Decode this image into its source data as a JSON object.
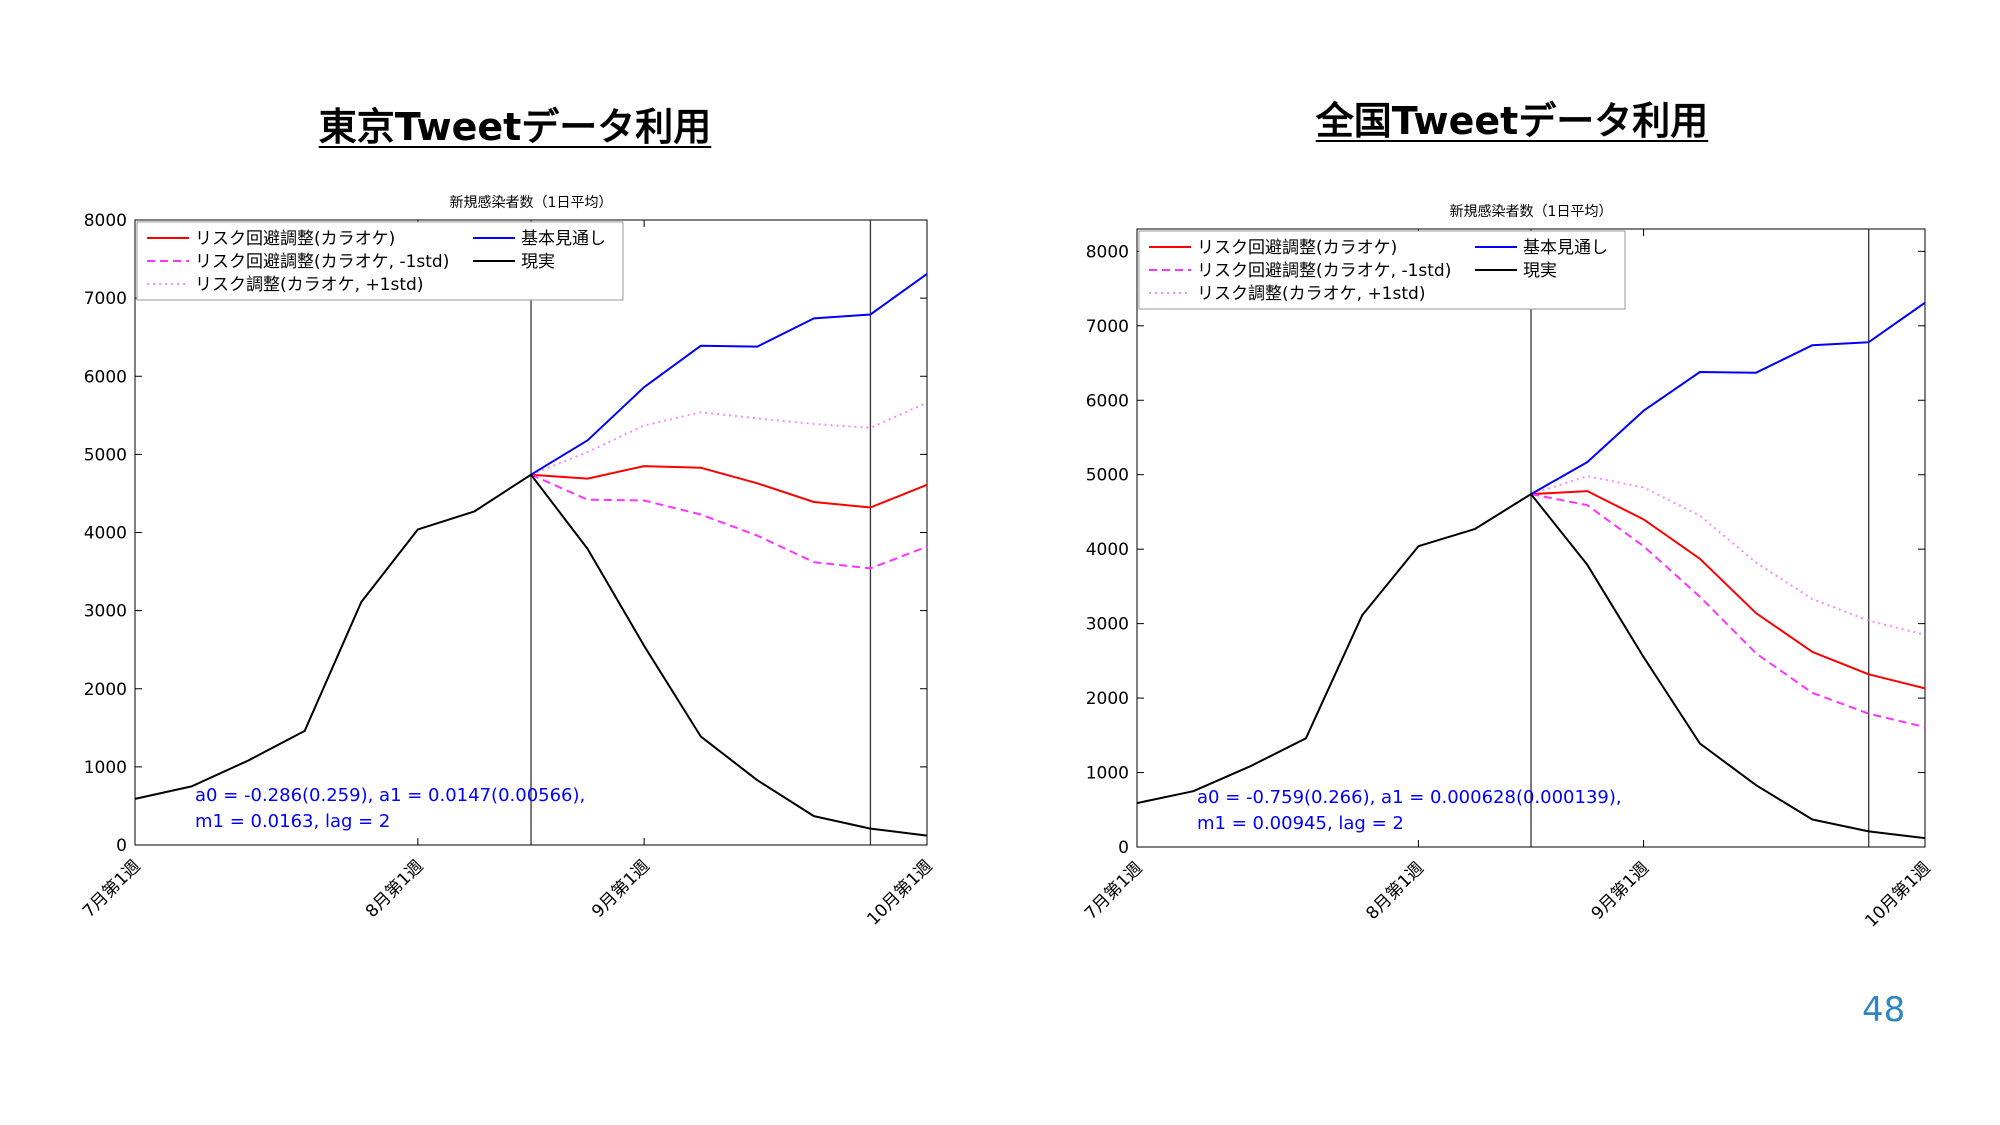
{
  "slide": {
    "page_number": "48"
  },
  "chart_data": [
    {
      "type": "line",
      "heading": "東京Tweetデータ利用",
      "title": "新規感染者数（1日平均）",
      "xlabel": "",
      "ylabel": "",
      "ylim": [
        0,
        8000
      ],
      "yticks": [
        0,
        1000,
        2000,
        3000,
        4000,
        5000,
        6000,
        7000,
        8000
      ],
      "xlim": [
        0,
        14
      ],
      "xticks": [
        {
          "x": 0,
          "label": "7月第1週"
        },
        {
          "x": 5,
          "label": "8月第1週"
        },
        {
          "x": 9,
          "label": "9月第1週"
        },
        {
          "x": 14,
          "label": "10月第1週"
        }
      ],
      "vlines": [
        7,
        13
      ],
      "legend_position": "top-left",
      "annotation": [
        "a0 = -0.286(0.259), a1 = 0.0147(0.00566),",
        "m1 = 0.0163, lag = 2"
      ],
      "series": [
        {
          "name": "リスク回避調整(カラオケ)",
          "color": "#ff0000",
          "dash": "solid",
          "x": [
            7,
            8,
            9,
            10,
            11,
            12,
            13,
            14
          ],
          "values": [
            4740,
            4690,
            4850,
            4830,
            4630,
            4390,
            4320,
            4610
          ]
        },
        {
          "name": "リスク回避調整(カラオケ, -1std)",
          "color": "#ff33ff",
          "dash": "dashed",
          "x": [
            7,
            8,
            9,
            10,
            11,
            12,
            13,
            14
          ],
          "values": [
            4740,
            4420,
            4410,
            4230,
            3960,
            3620,
            3540,
            3820
          ]
        },
        {
          "name": "リスク調整(カラオケ, +1std)",
          "color": "#ff88ff",
          "dash": "dotted",
          "x": [
            7,
            8,
            9,
            10,
            11,
            12,
            13,
            14
          ],
          "values": [
            4740,
            5030,
            5370,
            5540,
            5460,
            5390,
            5340,
            5660
          ]
        },
        {
          "name": "基本見通し",
          "color": "#0000ff",
          "dash": "solid",
          "x": [
            7,
            8,
            9,
            10,
            11,
            12,
            13,
            14
          ],
          "values": [
            4740,
            5180,
            5860,
            6390,
            6380,
            6740,
            6790,
            7310
          ]
        },
        {
          "name": "現実",
          "color": "#000000",
          "dash": "solid",
          "x": [
            0,
            1,
            2,
            3,
            4,
            5,
            6,
            7,
            8,
            9,
            10,
            11,
            12,
            13,
            14
          ],
          "values": [
            590,
            750,
            1080,
            1460,
            3110,
            4040,
            4270,
            4740,
            3790,
            2550,
            1390,
            830,
            370,
            210,
            120
          ]
        }
      ]
    },
    {
      "type": "line",
      "heading": "全国Tweetデータ利用",
      "title": "新規感染者数（1日平均）",
      "xlabel": "",
      "ylabel": "",
      "ylim": [
        0,
        8300
      ],
      "yticks": [
        0,
        1000,
        2000,
        3000,
        4000,
        5000,
        6000,
        7000,
        8000
      ],
      "xlim": [
        0,
        14
      ],
      "xticks": [
        {
          "x": 0,
          "label": "7月第1週"
        },
        {
          "x": 5,
          "label": "8月第1週"
        },
        {
          "x": 9,
          "label": "9月第1週"
        },
        {
          "x": 14,
          "label": "10月第1週"
        }
      ],
      "vlines": [
        7,
        13
      ],
      "legend_position": "top-left",
      "annotation": [
        "a0 = -0.759(0.266), a1 = 0.000628(0.000139),",
        "m1 = 0.00945, lag = 2"
      ],
      "series": [
        {
          "name": "リスク回避調整(カラオケ)",
          "color": "#ff0000",
          "dash": "solid",
          "x": [
            7,
            8,
            9,
            10,
            11,
            12,
            13,
            14
          ],
          "values": [
            4740,
            4780,
            4400,
            3870,
            3140,
            2620,
            2320,
            2130
          ]
        },
        {
          "name": "リスク回避調整(カラオケ, -1std)",
          "color": "#ff33ff",
          "dash": "dashed",
          "x": [
            7,
            8,
            9,
            10,
            11,
            12,
            13,
            14
          ],
          "values": [
            4740,
            4590,
            4040,
            3360,
            2600,
            2070,
            1790,
            1610
          ]
        },
        {
          "name": "リスク調整(カラオケ, +1std)",
          "color": "#ff88ff",
          "dash": "dotted",
          "x": [
            7,
            8,
            9,
            10,
            11,
            12,
            13,
            14
          ],
          "values": [
            4740,
            4980,
            4830,
            4450,
            3820,
            3330,
            3040,
            2850
          ]
        },
        {
          "name": "基本見通し",
          "color": "#0000ff",
          "dash": "solid",
          "x": [
            7,
            8,
            9,
            10,
            11,
            12,
            13,
            14
          ],
          "values": [
            4740,
            5170,
            5860,
            6380,
            6370,
            6740,
            6780,
            7310
          ]
        },
        {
          "name": "現実",
          "color": "#000000",
          "dash": "solid",
          "x": [
            0,
            1,
            2,
            3,
            4,
            5,
            6,
            7,
            8,
            9,
            10,
            11,
            12,
            13,
            14
          ],
          "values": [
            590,
            750,
            1080,
            1460,
            3110,
            4040,
            4270,
            4740,
            3790,
            2550,
            1390,
            830,
            370,
            210,
            120
          ]
        }
      ]
    }
  ]
}
